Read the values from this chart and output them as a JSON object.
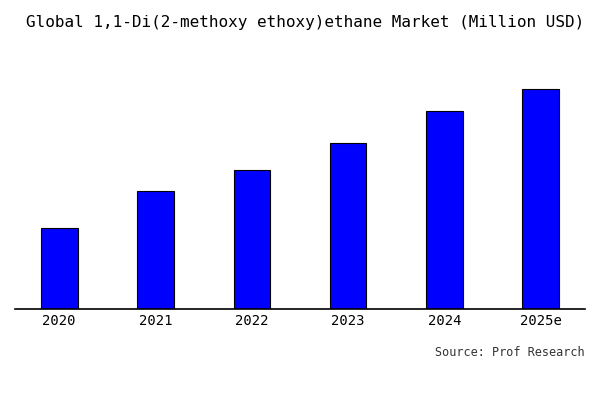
{
  "title": "Global 1,1-Di(2-methoxy ethoxy)ethane Market (Million USD)",
  "categories": [
    "2020",
    "2021",
    "2022",
    "2023",
    "2024",
    "2025e"
  ],
  "values": [
    30,
    44,
    52,
    62,
    74,
    82
  ],
  "bar_color": "#0000FF",
  "bar_edge_color": "#000000",
  "bar_edge_width": 0.8,
  "background_color": "#FFFFFF",
  "title_fontsize": 11.5,
  "tick_fontsize": 10,
  "source_text": "Source: Prof Research",
  "source_fontsize": 8.5,
  "ylim": [
    0,
    100
  ],
  "bar_width": 0.38
}
